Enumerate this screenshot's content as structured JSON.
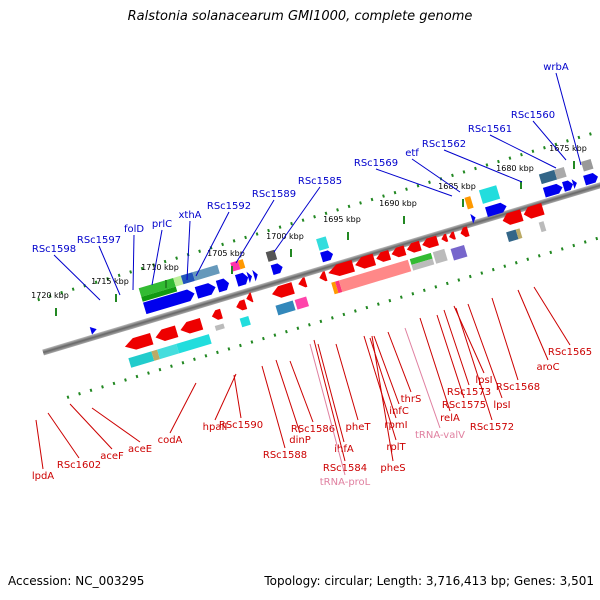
{
  "title": "Ralstonia solanacearum GMI1000, complete genome",
  "footer": {
    "accession": "Accession: NC_003295",
    "summary": "Topology: circular; Length: 3,716,413 bp; Genes: 3,501"
  },
  "colors": {
    "upper_label": "#0000cc",
    "lower_label": "#cc0000",
    "rna_label": "#e080a0",
    "dots": "#228822",
    "axis": "#888888"
  },
  "ticks": [
    "1720 kbp",
    "1715 kbp",
    "1710 kbp",
    "1705 kbp",
    "1700 kbp",
    "1695 kbp",
    "1690 kbp",
    "1685 kbp",
    "1680 kbp",
    "1675 kbp"
  ],
  "upper_genes": [
    "RSc1598",
    "RSc1597",
    "folD",
    "prlC",
    "xthA",
    "RSc1592",
    "RSc1589",
    "RSc1585",
    "RSc1569",
    "etf",
    "RSc1562",
    "RSc1561",
    "RSc1560",
    "wrbA"
  ],
  "lower_genes": [
    "lpdA",
    "RSc1602",
    "aceF",
    "aceE",
    "codA",
    "hpaII",
    "RSc1590",
    "RSc1588",
    "dinP",
    "RSc1586",
    "RSc1584",
    "ihfA",
    "pheT",
    "rplT",
    "pheS",
    "rpmI",
    "infC",
    "thrS",
    "relA",
    "RSc1575",
    "RSc1573",
    "lpsI",
    "lpsI",
    "RSc1572",
    "RSc1568",
    "aroC",
    "RSc1565"
  ],
  "rna_genes": [
    "tRNA-proL",
    "tRNA-valV"
  ]
}
